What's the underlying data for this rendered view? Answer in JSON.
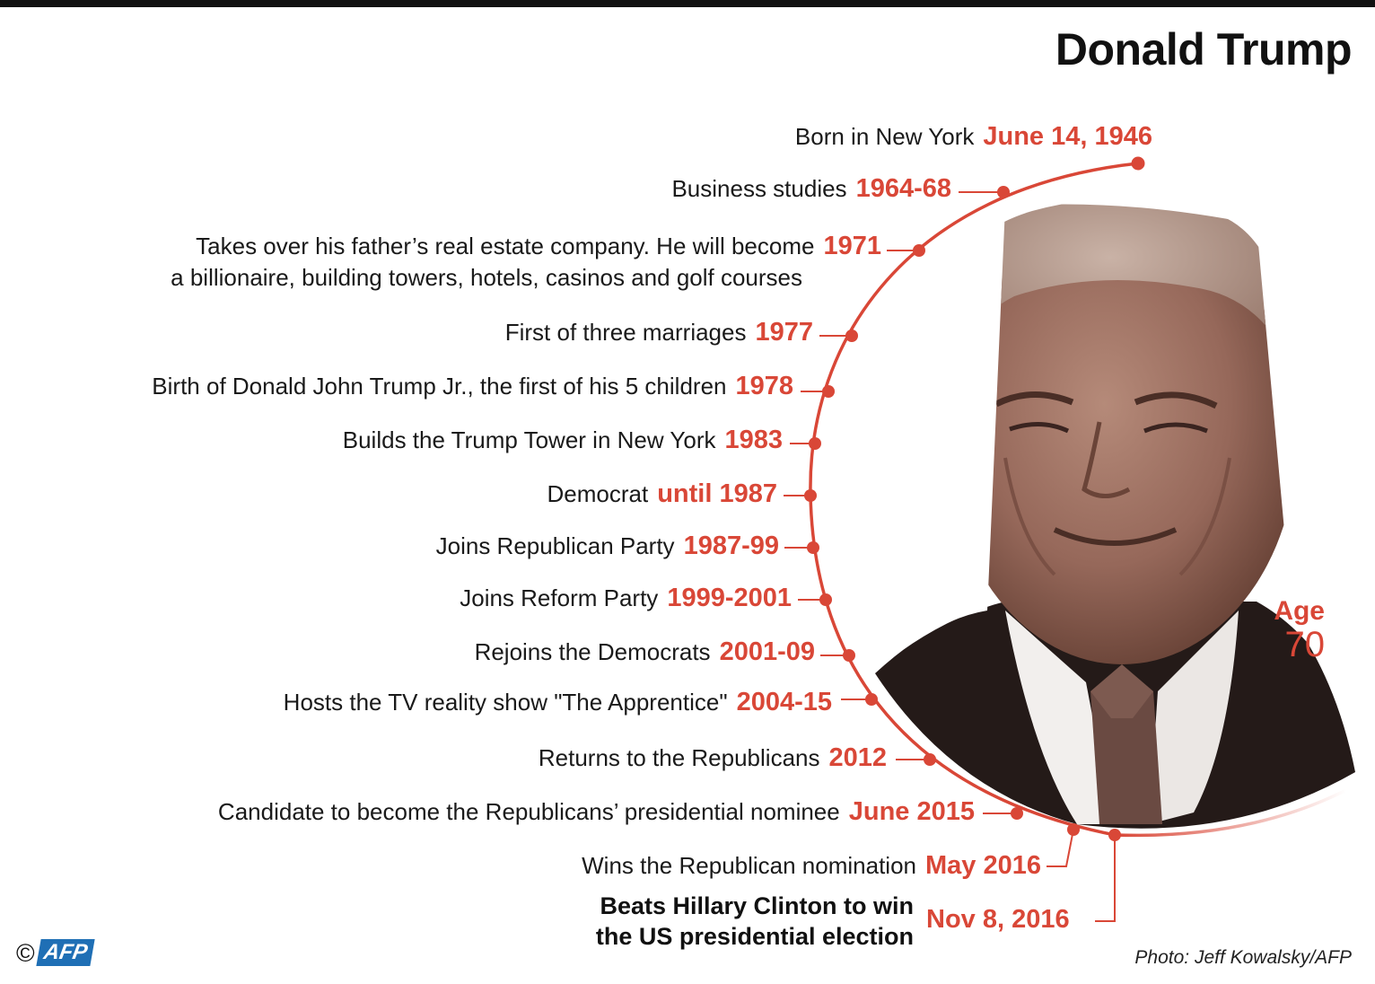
{
  "title": "Donald Trump",
  "events": [
    {
      "desc": "Born in New York",
      "date": "June 14, 1946"
    },
    {
      "desc": "Business studies",
      "date": "1964-68"
    },
    {
      "desc": "Takes over his father’s real estate company. He will become",
      "desc2": "a billionaire, building towers, hotels, casinos and golf courses",
      "date": "1971"
    },
    {
      "desc": "First of three marriages",
      "date": "1977"
    },
    {
      "desc": "Birth of Donald John Trump Jr., the first of his 5 children",
      "date": "1978"
    },
    {
      "desc": "Builds the Trump Tower in New York",
      "date": "1983"
    },
    {
      "desc": "Democrat",
      "date": "until 1987"
    },
    {
      "desc": "Joins Republican Party",
      "date": "1987-99"
    },
    {
      "desc": "Joins Reform Party",
      "date": "1999-2001"
    },
    {
      "desc": "Rejoins the Democrats",
      "date": "2001-09"
    },
    {
      "desc": "Hosts the TV reality show \"The Apprentice\"",
      "date": "2004-15"
    },
    {
      "desc": "Returns to the Republicans",
      "date": "2012"
    },
    {
      "desc": "Candidate to become the Republicans’ presidential nominee",
      "date": "June 2015"
    },
    {
      "desc": "Wins the Republican nomination",
      "date": "May 2016"
    }
  ],
  "final_event": {
    "line1": "Beats Hillary Clinton to win",
    "line2": "the US presidential election",
    "date": "Nov 8, 2016"
  },
  "age": {
    "label": "Age",
    "value": "70"
  },
  "credits": {
    "copyright": "©",
    "agency_logo": "AFP",
    "photo": "Photo: Jeff Kowalsky/AFP"
  },
  "colors": {
    "accent": "#d94737",
    "text": "#1a1a1a",
    "photo_tone": "#8a5a4a"
  }
}
